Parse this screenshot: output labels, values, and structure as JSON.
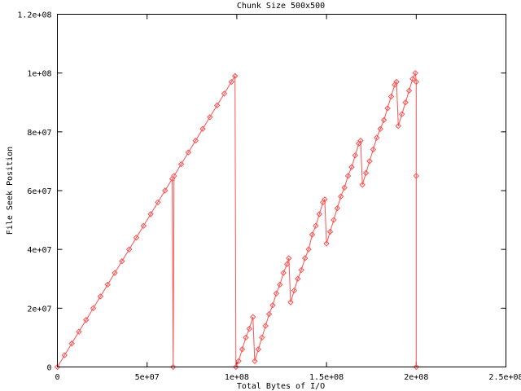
{
  "chart_data": {
    "type": "line",
    "title": "Chunk Size 500x500",
    "xlabel": "Total Bytes of I/O",
    "ylabel": "File Seek Position",
    "xlim": [
      0,
      250000000
    ],
    "ylim": [
      0,
      120000000
    ],
    "x_ticks": [
      0,
      50000000,
      100000000,
      150000000,
      200000000,
      250000000
    ],
    "x_tick_labels": [
      "0",
      "5e+07",
      "1e+08",
      "1.5e+08",
      "2e+08",
      "2.5e+08"
    ],
    "y_ticks": [
      0,
      20000000,
      40000000,
      60000000,
      80000000,
      100000000,
      120000000
    ],
    "y_tick_labels": [
      "0",
      "2e+07",
      "4e+07",
      "6e+07",
      "8e+07",
      "1e+08",
      "1.2e+08"
    ],
    "grid": false,
    "legend": "none",
    "series_color": "#ff5050",
    "marker": "diamond",
    "points": [
      [
        0,
        0
      ],
      [
        4000000.0,
        4000000.0
      ],
      [
        8000000.0,
        8000000.0
      ],
      [
        12000000.0,
        12000000.0
      ],
      [
        16000000.0,
        16000000.0
      ],
      [
        20000000.0,
        20000000.0
      ],
      [
        24000000.0,
        24000000.0
      ],
      [
        28000000.0,
        28000000.0
      ],
      [
        32000000.0,
        32000000.0
      ],
      [
        36000000.0,
        36000000.0
      ],
      [
        40000000.0,
        40000000.0
      ],
      [
        44000000.0,
        44000000.0
      ],
      [
        48000000.0,
        48000000.0
      ],
      [
        52000000.0,
        52000000.0
      ],
      [
        56000000.0,
        56000000.0
      ],
      [
        60000000.0,
        60000000.0
      ],
      [
        64000000.0,
        64000000.0
      ],
      [
        64500000.0,
        0
      ],
      [
        65000000.0,
        65000000.0
      ],
      [
        69000000.0,
        69000000.0
      ],
      [
        73000000.0,
        73000000.0
      ],
      [
        77000000.0,
        77000000.0
      ],
      [
        81000000.0,
        81000000.0
      ],
      [
        85000000.0,
        85000000.0
      ],
      [
        89000000.0,
        89000000.0
      ],
      [
        93000000.0,
        93000000.0
      ],
      [
        97000000.0,
        97000000.0
      ],
      [
        99000000.0,
        99000000.0
      ],
      [
        99500000.0,
        0
      ],
      [
        101000000.0,
        2000000.0
      ],
      [
        103000000.0,
        6000000.0
      ],
      [
        105000000.0,
        10000000.0
      ],
      [
        107000000.0,
        13000000.0
      ],
      [
        109000000.0,
        17000000.0
      ],
      [
        110000000.0,
        2000000.0
      ],
      [
        112000000.0,
        6000000.0
      ],
      [
        114000000.0,
        10000000.0
      ],
      [
        116000000.0,
        14000000.0
      ],
      [
        118000000.0,
        18000000.0
      ],
      [
        120000000.0,
        21000000.0
      ],
      [
        122000000.0,
        25000000.0
      ],
      [
        124000000.0,
        28000000.0
      ],
      [
        126000000.0,
        32000000.0
      ],
      [
        128000000.0,
        35000000.0
      ],
      [
        129000000.0,
        37000000.0
      ],
      [
        130000000.0,
        22000000.0
      ],
      [
        132000000.0,
        26000000.0
      ],
      [
        134000000.0,
        30000000.0
      ],
      [
        136000000.0,
        33000000.0
      ],
      [
        138000000.0,
        37000000.0
      ],
      [
        140000000.0,
        40000000.0
      ],
      [
        142000000.0,
        45000000.0
      ],
      [
        144000000.0,
        48000000.0
      ],
      [
        146000000.0,
        52000000.0
      ],
      [
        148000000.0,
        56000000.0
      ],
      [
        149000000.0,
        57000000.0
      ],
      [
        150000000.0,
        42000000.0
      ],
      [
        152000000.0,
        46000000.0
      ],
      [
        154000000.0,
        50000000.0
      ],
      [
        156000000.0,
        54000000.0
      ],
      [
        158000000.0,
        58000000.0
      ],
      [
        160000000.0,
        61000000.0
      ],
      [
        162000000.0,
        65000000.0
      ],
      [
        164000000.0,
        68000000.0
      ],
      [
        166000000.0,
        72000000.0
      ],
      [
        168000000.0,
        76000000.0
      ],
      [
        169000000.0,
        77000000.0
      ],
      [
        170000000.0,
        62000000.0
      ],
      [
        172000000.0,
        66000000.0
      ],
      [
        174000000.0,
        70000000.0
      ],
      [
        176000000.0,
        74000000.0
      ],
      [
        178000000.0,
        78000000.0
      ],
      [
        180000000.0,
        81000000.0
      ],
      [
        182000000.0,
        84000000.0
      ],
      [
        184000000.0,
        88000000.0
      ],
      [
        186000000.0,
        92000000.0
      ],
      [
        188000000.0,
        96000000.0
      ],
      [
        189000000.0,
        97000000.0
      ],
      [
        190000000.0,
        82000000.0
      ],
      [
        192000000.0,
        86000000.0
      ],
      [
        194000000.0,
        90000000.0
      ],
      [
        196000000.0,
        94000000.0
      ],
      [
        198000000.0,
        98000000.0
      ],
      [
        199500000.0,
        100000000.0
      ],
      [
        200000000.0,
        97000000.0
      ],
      [
        200000000.0,
        65000000.0
      ],
      [
        200000000.0,
        0
      ]
    ]
  }
}
